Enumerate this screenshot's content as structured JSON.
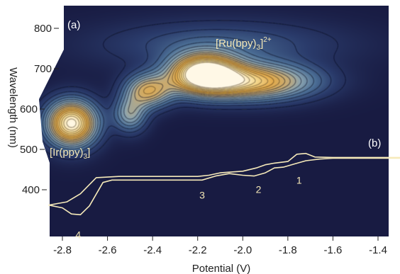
{
  "chart_data": {
    "type": "heatmap",
    "title": "",
    "xlabel": "Potential (V)",
    "ylabel": "Wavelength (nm)",
    "xlim": [
      -2.85,
      -1.27
    ],
    "ylim": [
      300,
      840
    ],
    "x_ticks": [
      -2.8,
      -2.6,
      -2.4,
      -2.2,
      -2.0,
      -1.8,
      -1.6,
      -1.4
    ],
    "y_ticks": [
      400,
      500,
      600,
      700,
      800
    ],
    "x_tick_labels": [
      "-2.8",
      "-2.6",
      "-2.4",
      "-2.2",
      "-2.0",
      "-1.8",
      "-1.6",
      "-1.4"
    ],
    "y_tick_labels": [
      "400",
      "500",
      "600",
      "700",
      "800"
    ],
    "grid": false,
    "panel_labels": [
      "(a)",
      "(b)"
    ],
    "peaks": [
      {
        "label": "[Ir(ppy)3]",
        "label_main": "[Ir(ppy)",
        "label_sub": "3",
        "label_tail": "]",
        "x": -2.76,
        "y": 565,
        "sx": 0.075,
        "sy": 38,
        "amp": 1.0
      },
      {
        "label": "[Ru(bpy)3]2+",
        "label_main": "[Ru(bpy)",
        "label_sub": "3",
        "label_tail": "]",
        "label_sup": "2+",
        "x": -2.17,
        "y": 690,
        "sx": 0.1,
        "sy": 32,
        "amp": 1.0
      },
      {
        "label": "",
        "x": -1.98,
        "y": 668,
        "sx": 0.19,
        "sy": 30,
        "amp": 0.78
      },
      {
        "label": "",
        "x": -2.42,
        "y": 645,
        "sx": 0.07,
        "sy": 28,
        "amp": 0.55
      },
      {
        "label": "",
        "x": -2.5,
        "y": 588,
        "sx": 0.05,
        "sy": 30,
        "amp": 0.38
      },
      {
        "label": "",
        "x": -2.1,
        "y": 760,
        "sx": 0.35,
        "sy": 40,
        "amp": 0.18
      }
    ],
    "colorscale": [
      "#181b42",
      "#2a3b6b",
      "#4c6f96",
      "#8aa3b0",
      "#c7aa73",
      "#e2aa4c",
      "#f4d88e",
      "#fff8e6"
    ],
    "cv_curve": {
      "name": "",
      "points": [
        [
          -1.3,
          480
        ],
        [
          -1.6,
          480
        ],
        [
          -1.68,
          481
        ],
        [
          -1.72,
          490
        ],
        [
          -1.76,
          488
        ],
        [
          -1.8,
          470
        ],
        [
          -1.86,
          466
        ],
        [
          -1.9,
          462
        ],
        [
          -1.94,
          454
        ],
        [
          -2.0,
          446
        ],
        [
          -2.1,
          442
        ],
        [
          -2.15,
          436
        ],
        [
          -2.2,
          433
        ],
        [
          -2.4,
          433
        ],
        [
          -2.55,
          433
        ],
        [
          -2.65,
          430
        ],
        [
          -2.72,
          390
        ],
        [
          -2.78,
          370
        ],
        [
          -2.82,
          366
        ],
        [
          -2.86,
          362
        ],
        [
          -2.8,
          355
        ],
        [
          -2.76,
          340
        ],
        [
          -2.72,
          338
        ],
        [
          -2.68,
          360
        ],
        [
          -2.62,
          418
        ],
        [
          -2.58,
          424
        ],
        [
          -2.5,
          424
        ],
        [
          -2.3,
          424
        ],
        [
          -2.18,
          424
        ],
        [
          -2.12,
          434
        ],
        [
          -2.06,
          440
        ],
        [
          -2.0,
          436
        ],
        [
          -1.95,
          434
        ],
        [
          -1.9,
          442
        ],
        [
          -1.86,
          454
        ],
        [
          -1.82,
          456
        ],
        [
          -1.77,
          464
        ],
        [
          -1.72,
          472
        ],
        [
          -1.66,
          476
        ],
        [
          -1.6,
          478
        ],
        [
          -1.3,
          478
        ]
      ],
      "wave_labels": [
        {
          "text": "1",
          "x": -1.75,
          "y": 415
        },
        {
          "text": "2",
          "x": -1.93,
          "y": 392
        },
        {
          "text": "3",
          "x": -2.18,
          "y": 378
        },
        {
          "text": "4",
          "x": -2.73,
          "y": 280
        }
      ]
    }
  }
}
